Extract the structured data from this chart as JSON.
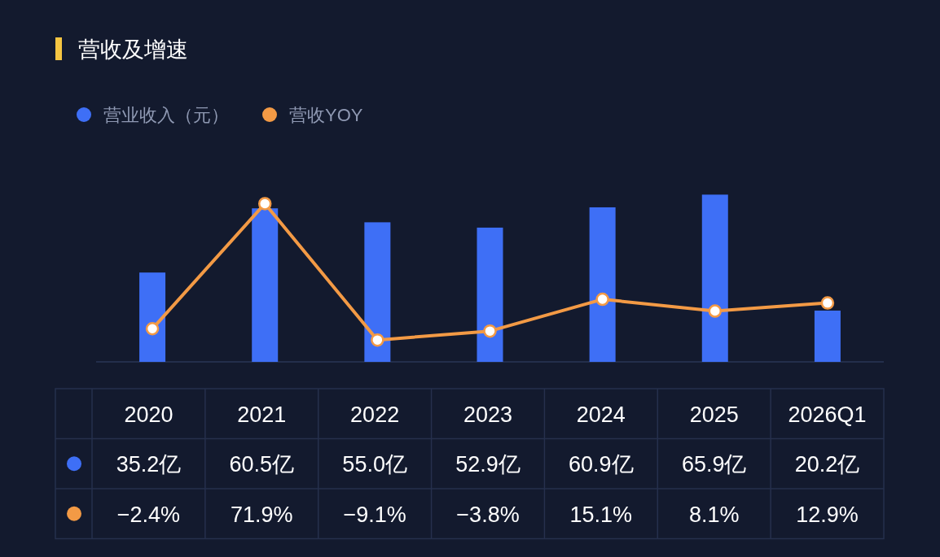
{
  "chart_data": {
    "type": "bar",
    "title": "营收及增速",
    "categories": [
      "2020",
      "2021",
      "2022",
      "2023",
      "2024",
      "2025",
      "2026Q1"
    ],
    "series": [
      {
        "name": "营业收入（元）",
        "color": "#3e6ff6",
        "values": [
          35.2,
          60.5,
          55.0,
          52.9,
          60.9,
          65.9,
          20.2
        ],
        "value_labels": [
          "35.2亿",
          "60.5亿",
          "55.0亿",
          "52.9亿",
          "60.9亿",
          "65.9亿",
          "20.2亿"
        ]
      },
      {
        "name": "营收YOY",
        "type": "line",
        "axis": "y2",
        "color": "#f39a45",
        "values": [
          -2.4,
          71.9,
          -9.1,
          -3.8,
          15.1,
          8.1,
          12.9
        ],
        "value_labels": [
          "−2.4%",
          "71.9%",
          "−9.1%",
          "−3.8%",
          "15.1%",
          "8.1%",
          "12.9%"
        ]
      }
    ],
    "tick_labels": false,
    "legend": "top left",
    "grid": false,
    "marker": "circle"
  }
}
